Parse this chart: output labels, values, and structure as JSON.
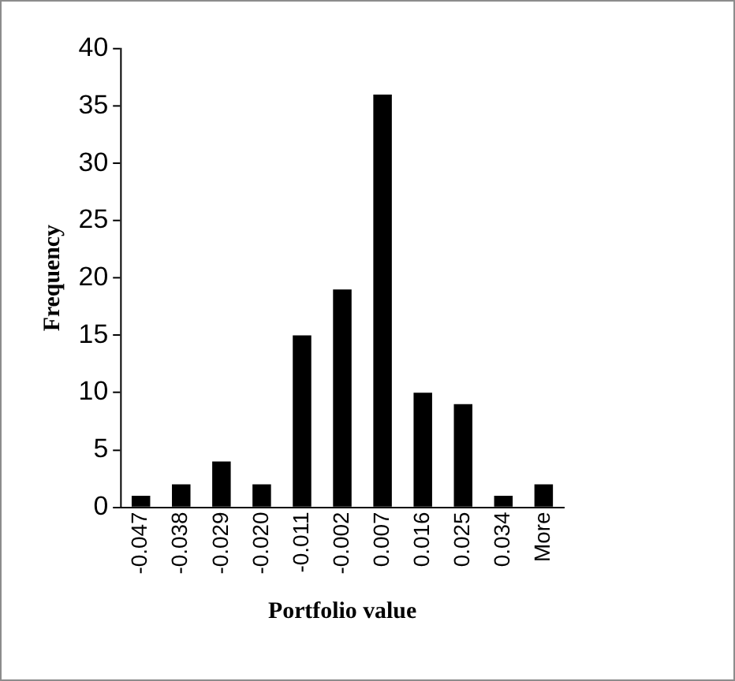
{
  "chart_data": {
    "type": "bar",
    "xlabel": "Portfolio value",
    "ylabel": "Frequency",
    "categories": [
      "-0.047",
      "-0.038",
      "-0.029",
      "-0.020",
      "-0.011",
      "-0.002",
      "0.007",
      "0.016",
      "0.025",
      "0.034",
      "More"
    ],
    "values": [
      1,
      2,
      4,
      2,
      15,
      19,
      36,
      10,
      9,
      1,
      2
    ],
    "color": "#000000",
    "ylim": [
      0,
      40
    ],
    "yticks": [
      0,
      5,
      10,
      15,
      20,
      25,
      30,
      35,
      40
    ],
    "grid": false,
    "legend": false
  }
}
